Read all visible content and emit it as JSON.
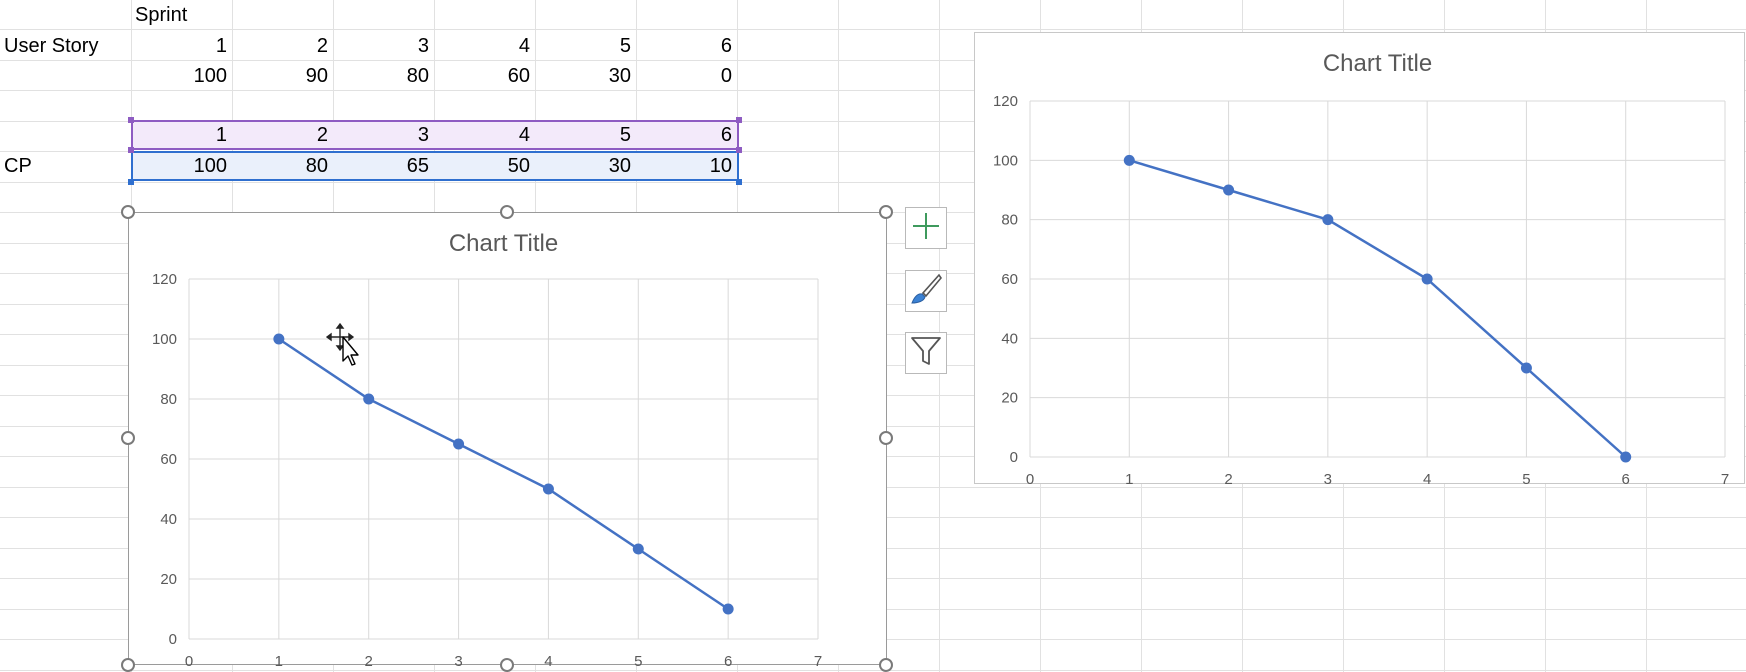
{
  "sheet": {
    "header_label": "Sprint",
    "row_user_story": {
      "label": "User Story",
      "values": [
        "1",
        "2",
        "3",
        "4",
        "5",
        "6"
      ]
    },
    "row_user_story_points": [
      "100",
      "90",
      "80",
      "60",
      "30",
      "0"
    ],
    "row_cp_x": [
      "1",
      "2",
      "3",
      "4",
      "5",
      "6"
    ],
    "row_cp": {
      "label": "CP",
      "values": [
        "100",
        "80",
        "65",
        "50",
        "30",
        "10"
      ]
    }
  },
  "chart_data": [
    {
      "type": "scatter",
      "title": "Chart Title",
      "x": [
        1,
        2,
        3,
        4,
        5,
        6
      ],
      "series": [
        {
          "values": [
            100,
            80,
            65,
            50,
            30,
            10
          ]
        }
      ],
      "xlim": [
        0,
        7
      ],
      "ylim": [
        0,
        120
      ],
      "xticks": [
        "0",
        "1",
        "2",
        "3",
        "4",
        "5",
        "6",
        "7"
      ],
      "yticks": [
        "0",
        "20",
        "40",
        "60",
        "80",
        "100",
        "120"
      ],
      "grid": true,
      "line_color": "#4472c4",
      "selected": true
    },
    {
      "type": "scatter",
      "title": "Chart Title",
      "x": [
        1,
        2,
        3,
        4,
        5,
        6
      ],
      "series": [
        {
          "values": [
            100,
            90,
            80,
            60,
            30,
            0
          ]
        }
      ],
      "xlim": [
        0,
        7
      ],
      "ylim": [
        0,
        120
      ],
      "xticks": [
        "0",
        "1",
        "2",
        "3",
        "4",
        "5",
        "6",
        "7"
      ],
      "yticks": [
        "0",
        "20",
        "40",
        "60",
        "80",
        "100",
        "120"
      ],
      "grid": true,
      "line_color": "#4472c4",
      "selected": false
    }
  ],
  "chart_tools": [
    {
      "icon": "chart-elements-plus-icon"
    },
    {
      "icon": "chart-styles-brush-icon"
    },
    {
      "icon": "chart-filters-funnel-icon"
    }
  ],
  "colors": {
    "grid": "#e1e1e1",
    "series": "#4472c4",
    "x_range": "#8e5cc2",
    "y_range": "#2f6fcf"
  }
}
